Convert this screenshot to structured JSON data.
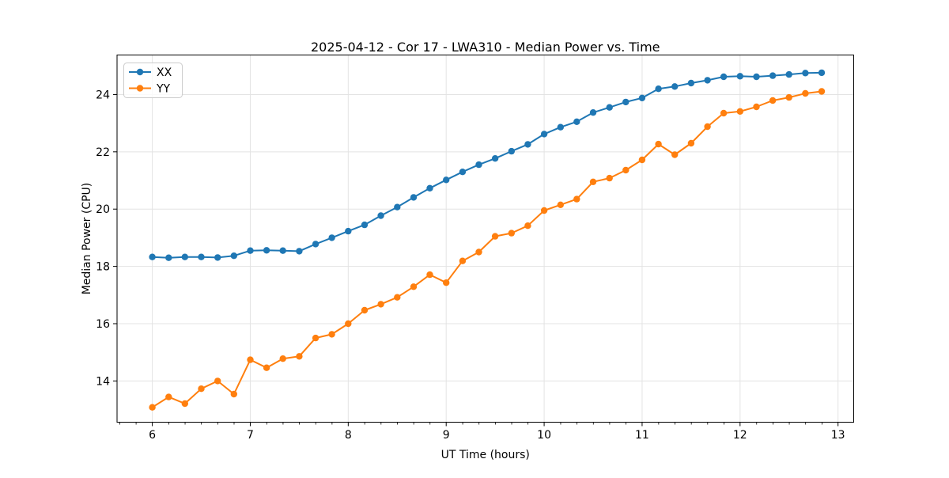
{
  "figure": {
    "background": "#ffffff",
    "grid_color": "#e3e3e3",
    "spine_color": "#000000",
    "text_color": "#000000",
    "legend_border_color": "#cccccc"
  },
  "chart_data": {
    "type": "line",
    "title": "2025-04-12 - Cor 17 - LWA310 - Median Power vs. Time",
    "xlabel": "UT Time (hours)",
    "ylabel": "Median Power (CPU)",
    "xlim": [
      5.64,
      13.16
    ],
    "ylim": [
      12.56,
      25.38
    ],
    "xticks": [
      6,
      7,
      8,
      9,
      10,
      11,
      12,
      13
    ],
    "yticks": [
      14,
      16,
      18,
      20,
      22,
      24
    ],
    "x_minor_tick_step": 0.1667,
    "grid": true,
    "legend_position": "upper left",
    "legend_entries": [
      "XX",
      "YY"
    ],
    "x": [
      6.0,
      6.167,
      6.333,
      6.5,
      6.667,
      6.833,
      7.0,
      7.167,
      7.333,
      7.5,
      7.667,
      7.833,
      8.0,
      8.167,
      8.333,
      8.5,
      8.667,
      8.833,
      9.0,
      9.167,
      9.333,
      9.5,
      9.667,
      9.833,
      10.0,
      10.167,
      10.333,
      10.5,
      10.667,
      10.833,
      11.0,
      11.167,
      11.333,
      11.5,
      11.667,
      11.833,
      12.0,
      12.167,
      12.333,
      12.5,
      12.667,
      12.833
    ],
    "series": [
      {
        "name": "XX",
        "color": "#1f77b4",
        "marker": "circle",
        "values": [
          18.33,
          18.3,
          18.33,
          18.33,
          18.31,
          18.37,
          18.55,
          18.56,
          18.55,
          18.53,
          18.78,
          19.0,
          19.23,
          19.45,
          19.77,
          20.07,
          20.41,
          20.73,
          21.02,
          21.3,
          21.55,
          21.77,
          22.02,
          22.26,
          22.62,
          22.86,
          23.05,
          23.37,
          23.55,
          23.74,
          23.88,
          24.2,
          24.28,
          24.4,
          24.5,
          24.62,
          24.64,
          24.62,
          24.66,
          24.7,
          24.75,
          24.76
        ]
      },
      {
        "name": "YY",
        "color": "#ff7f0e",
        "marker": "circle",
        "values": [
          13.08,
          13.44,
          13.21,
          13.73,
          14.0,
          13.54,
          14.74,
          14.46,
          14.78,
          14.86,
          15.5,
          15.63,
          16.0,
          16.47,
          16.68,
          16.92,
          17.29,
          17.71,
          17.43,
          18.19,
          18.5,
          19.05,
          19.16,
          19.42,
          19.95,
          20.15,
          20.35,
          20.95,
          21.08,
          21.36,
          21.72,
          22.27,
          21.9,
          22.3,
          22.88,
          23.35,
          23.41,
          23.57,
          23.79,
          23.9,
          24.04,
          24.11
        ]
      }
    ]
  }
}
